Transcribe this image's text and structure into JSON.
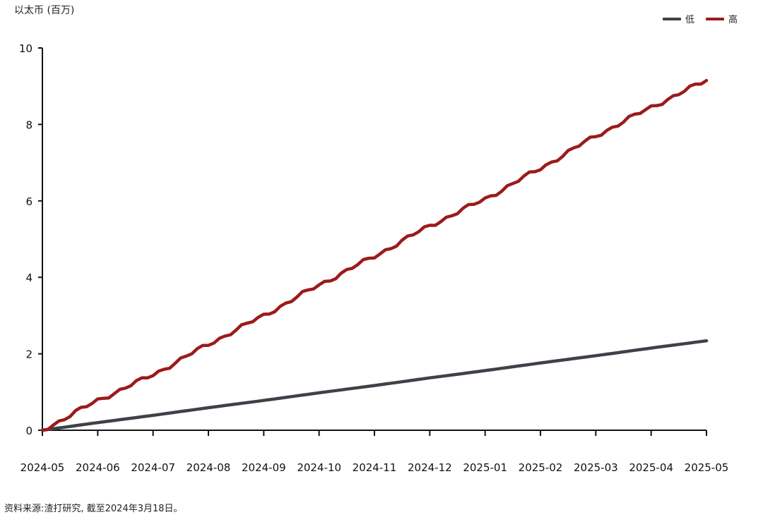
{
  "chart_data": {
    "type": "line",
    "title": "",
    "ylabel": "以太币 (百万)",
    "xlabel": "",
    "ylim": [
      0,
      10
    ],
    "yticks": [
      0,
      2,
      4,
      6,
      8,
      10
    ],
    "categories": [
      "2024-05",
      "2024-06",
      "2024-07",
      "2024-08",
      "2024-09",
      "2024-10",
      "2024-11",
      "2024-12",
      "2025-01",
      "2025-02",
      "2025-03",
      "2025-04",
      "2025-05"
    ],
    "legend_position": "top-right",
    "grid": false,
    "series": [
      {
        "name": "低",
        "color": "#3d4148",
        "values": [
          0,
          0.2,
          0.39,
          0.59,
          0.78,
          0.98,
          1.17,
          1.37,
          1.56,
          1.76,
          1.95,
          2.15,
          2.34
        ]
      },
      {
        "name": "高",
        "color": "#9b1b1b",
        "values": [
          0,
          0.78,
          1.45,
          2.25,
          3.0,
          3.8,
          4.55,
          5.35,
          6.05,
          6.85,
          7.7,
          8.45,
          9.15
        ]
      }
    ]
  },
  "source_note": "资料来源:渣打研究, 截至2024年3月18日。"
}
